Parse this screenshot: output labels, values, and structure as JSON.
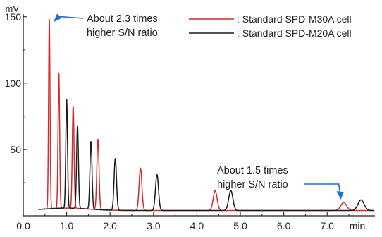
{
  "chart_data": {
    "type": "line",
    "title": "",
    "xlabel": "",
    "ylabel": "",
    "x_unit": "min",
    "y_unit": "mV",
    "xlim": [
      0.0,
      8.1
    ],
    "ylim": [
      0,
      152
    ],
    "x_ticks": [
      "0.0",
      "1.0",
      "2.0",
      "3.0",
      "4.0",
      "5.0",
      "6.0",
      "7.0"
    ],
    "y_ticks": [
      "50",
      "100",
      "150"
    ],
    "grid": false,
    "legend_position": "top-right",
    "series": [
      {
        "name": ": Standard SPD-M30A cell",
        "color": "#d42a2a",
        "baseline": 4,
        "peaks": [
          {
            "rt": 0.6,
            "height": 147
          },
          {
            "rt": 0.82,
            "height": 106
          },
          {
            "rt": 1.15,
            "height": 81
          },
          {
            "rt": 1.72,
            "height": 57
          },
          {
            "rt": 2.7,
            "height": 36
          },
          {
            "rt": 4.42,
            "height": 19
          },
          {
            "rt": 7.38,
            "height": 10
          }
        ]
      },
      {
        "name": ": Standard SPD-M20A cell",
        "color": "#1a1a1a",
        "baseline": 4,
        "peaks": [
          {
            "rt": 1.0,
            "height": 86
          },
          {
            "rt": 1.25,
            "height": 66
          },
          {
            "rt": 1.56,
            "height": 55
          },
          {
            "rt": 2.12,
            "height": 43
          },
          {
            "rt": 3.08,
            "height": 31
          },
          {
            "rt": 4.78,
            "height": 19
          },
          {
            "rt": 7.78,
            "height": 12
          }
        ]
      }
    ],
    "annotations": [
      {
        "line1": "About 2.3 times",
        "line2": "higher S/N ratio",
        "target_x": 0.6,
        "target_y": 147
      },
      {
        "line1": "About 1.5 times",
        "line2": "higher S/N ratio",
        "target_x": 7.38,
        "target_y": 10
      }
    ]
  }
}
